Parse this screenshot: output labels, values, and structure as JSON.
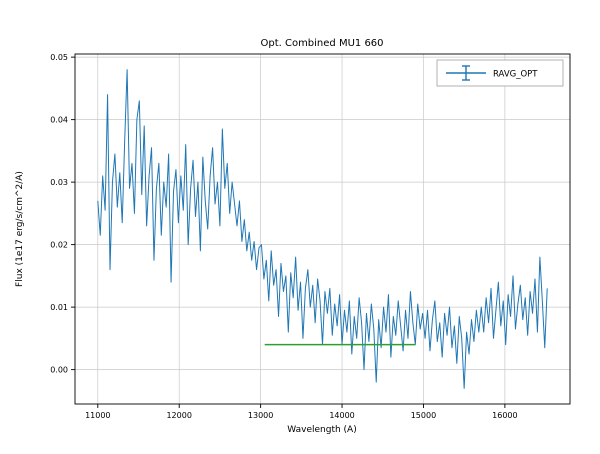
{
  "figure": {
    "background": "#ffffff",
    "plot_border_color": "#000000",
    "grid_color": "#c9c9c9"
  },
  "chart_data": {
    "type": "line",
    "title": "Opt. Combined MU1 660",
    "xlabel": "Wavelength (A)",
    "ylabel": "Flux (1e17 erg/s/cm^2/A)",
    "grid": true,
    "legend": {
      "position": "upper right",
      "entries": [
        {
          "label": "RAVG_OPT",
          "color": "#1f77b4",
          "marker": "errorbar"
        }
      ]
    },
    "xlim": [
      10720,
      16800
    ],
    "ylim": [
      -0.0055,
      0.0505
    ],
    "x_ticks": [
      11000,
      12000,
      13000,
      14000,
      15000,
      16000
    ],
    "x_tick_labels": [
      "11000",
      "12000",
      "13000",
      "14000",
      "15000",
      "16000"
    ],
    "y_ticks": [
      0.0,
      0.01,
      0.02,
      0.03,
      0.04,
      0.05
    ],
    "y_tick_labels": [
      "0.00",
      "0.01",
      "0.02",
      "0.03",
      "0.04",
      "0.05"
    ],
    "series": [
      {
        "name": "RAVG_OPT",
        "color": "#1f77b4",
        "x_start": 11000,
        "x_step": 30,
        "values": [
          0.027,
          0.0215,
          0.031,
          0.0255,
          0.044,
          0.016,
          0.03,
          0.0345,
          0.026,
          0.0315,
          0.0235,
          0.0365,
          0.048,
          0.029,
          0.033,
          0.025,
          0.04,
          0.043,
          0.028,
          0.039,
          0.023,
          0.031,
          0.0355,
          0.0175,
          0.029,
          0.033,
          0.0215,
          0.03,
          0.026,
          0.0345,
          0.014,
          0.0285,
          0.032,
          0.0235,
          0.031,
          0.0255,
          0.036,
          0.02,
          0.029,
          0.0335,
          0.0245,
          0.03,
          0.019,
          0.034,
          0.027,
          0.0225,
          0.031,
          0.0355,
          0.0265,
          0.03,
          0.023,
          0.0385,
          0.029,
          0.033,
          0.025,
          0.03,
          0.0265,
          0.023,
          0.027,
          0.0205,
          0.024,
          0.019,
          0.022,
          0.0175,
          0.0205,
          0.016,
          0.0195,
          0.02,
          0.0145,
          0.0175,
          0.011,
          0.019,
          0.0135,
          0.016,
          0.0085,
          0.017,
          0.0125,
          0.015,
          0.006,
          0.0155,
          0.0115,
          0.018,
          0.0095,
          0.014,
          0.005,
          0.013,
          0.016,
          0.01,
          0.0135,
          0.0075,
          0.0145,
          0.011,
          0.004,
          0.0125,
          0.009,
          0.013,
          0.0055,
          0.0105,
          0.007,
          0.012,
          0.004,
          0.0095,
          0.006,
          0.011,
          0.0025,
          0.0085,
          0.005,
          0.0115,
          0.0075,
          0.0,
          0.009,
          0.0045,
          0.0105,
          0.0065,
          -0.002,
          0.008,
          0.0035,
          0.01,
          0.006,
          0.012,
          0.002,
          0.0085,
          0.0055,
          0.011,
          0.007,
          0.003,
          0.0095,
          0.005,
          0.0125,
          0.0075,
          0.004,
          0.0105,
          0.0065,
          0.009,
          0.005,
          0.0095,
          0.003,
          0.008,
          0.011,
          0.0045,
          0.0075,
          0.002,
          0.009,
          0.0055,
          0.01,
          0.0035,
          0.007,
          0.001,
          0.0085,
          0.005,
          -0.003,
          0.006,
          0.0025,
          0.008,
          0.0045,
          0.0095,
          0.006,
          0.01,
          0.006,
          0.0115,
          0.0075,
          0.013,
          0.005,
          0.0095,
          0.014,
          0.007,
          0.011,
          0.004,
          0.012,
          0.0085,
          0.015,
          0.0065,
          0.0105,
          0.0135,
          0.008,
          0.0115,
          0.0055,
          0.0125,
          0.009,
          0.0145,
          0.006,
          0.018,
          0.011,
          0.0035,
          0.013
        ]
      },
      {
        "name": "baseline_segment",
        "color": "#2ca02c",
        "x": [
          13050,
          14900
        ],
        "y": [
          0.004,
          0.004
        ]
      }
    ]
  }
}
